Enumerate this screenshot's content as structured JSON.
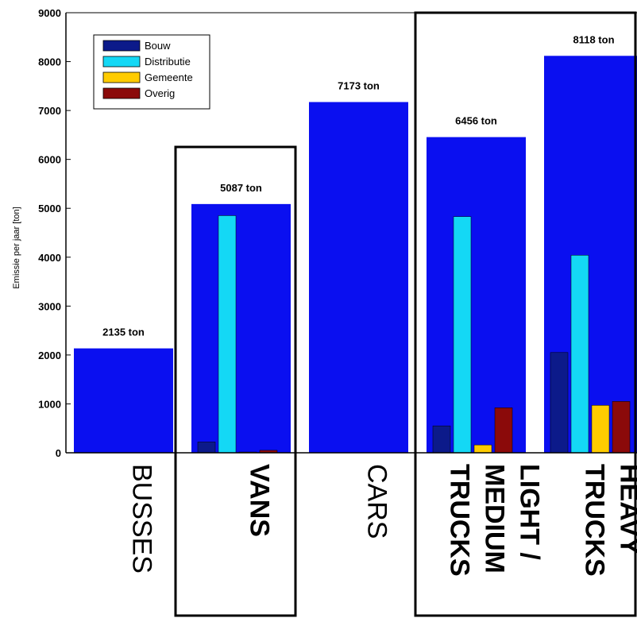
{
  "chart_data": {
    "type": "bar",
    "ylabel": "Emissie per jaar [ton]",
    "ylim": [
      0,
      9000
    ],
    "yticks": [
      0,
      1000,
      2000,
      3000,
      4000,
      5000,
      6000,
      7000,
      8000,
      9000
    ],
    "legend": {
      "position": "top-left",
      "entries": [
        "Bouw",
        "Distributie",
        "Gemeente",
        "Overig"
      ]
    },
    "colors": {
      "total": "#0a0ff0",
      "Bouw": "#0c1a8a",
      "Distributie": "#14d8f5",
      "Gemeente": "#ffcc00",
      "Overig": "#8b0a0a"
    },
    "categories": [
      {
        "label": [
          "BUSSES"
        ],
        "bold": false,
        "total": 2135,
        "total_label": "2135 ton",
        "subs": null
      },
      {
        "label": [
          "VANS"
        ],
        "bold": true,
        "total": 5087,
        "total_label": "5087 ton",
        "subs": [
          220,
          4850,
          15,
          50
        ]
      },
      {
        "label": [
          "CARS"
        ],
        "bold": false,
        "total": 7173,
        "total_label": "7173 ton",
        "subs": null
      },
      {
        "label": [
          "LIGHT /",
          "MEDIUM",
          "TRUCKS"
        ],
        "bold": true,
        "total": 6456,
        "total_label": "6456 ton",
        "subs": [
          550,
          4830,
          160,
          920
        ]
      },
      {
        "label": [
          "HEAVY",
          "TRUCKS"
        ],
        "bold": true,
        "total": 8118,
        "total_label": "8118 ton",
        "subs": [
          2050,
          4040,
          970,
          1050
        ]
      }
    ]
  }
}
